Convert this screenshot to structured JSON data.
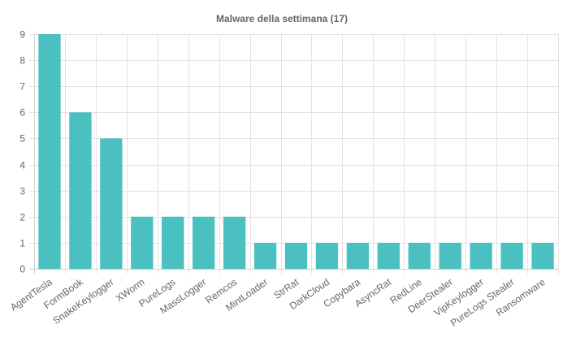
{
  "chart_data": {
    "type": "bar",
    "title": "Malware della settimana (17)",
    "xlabel": "",
    "ylabel": "",
    "ylim": [
      0,
      9
    ],
    "yticks": [
      0,
      1,
      2,
      3,
      4,
      5,
      6,
      7,
      8,
      9
    ],
    "grid": true,
    "legend": "none",
    "bar_color": "#4bc0c0",
    "categories": [
      "AgentTesla",
      "FormBook",
      "SnakeKeylogger",
      "XWorm",
      "PureLogs",
      "MassLogger",
      "Remcos",
      "MintLoader",
      "StrRat",
      "DarkCloud",
      "Copybara",
      "AsyncRat",
      "RedLine",
      "DeerStealer",
      "VipKeylogger",
      "PureLogs Stealer",
      "Ransomware"
    ],
    "values": [
      9,
      6,
      5,
      2,
      2,
      2,
      2,
      1,
      1,
      1,
      1,
      1,
      1,
      1,
      1,
      1,
      1
    ]
  }
}
